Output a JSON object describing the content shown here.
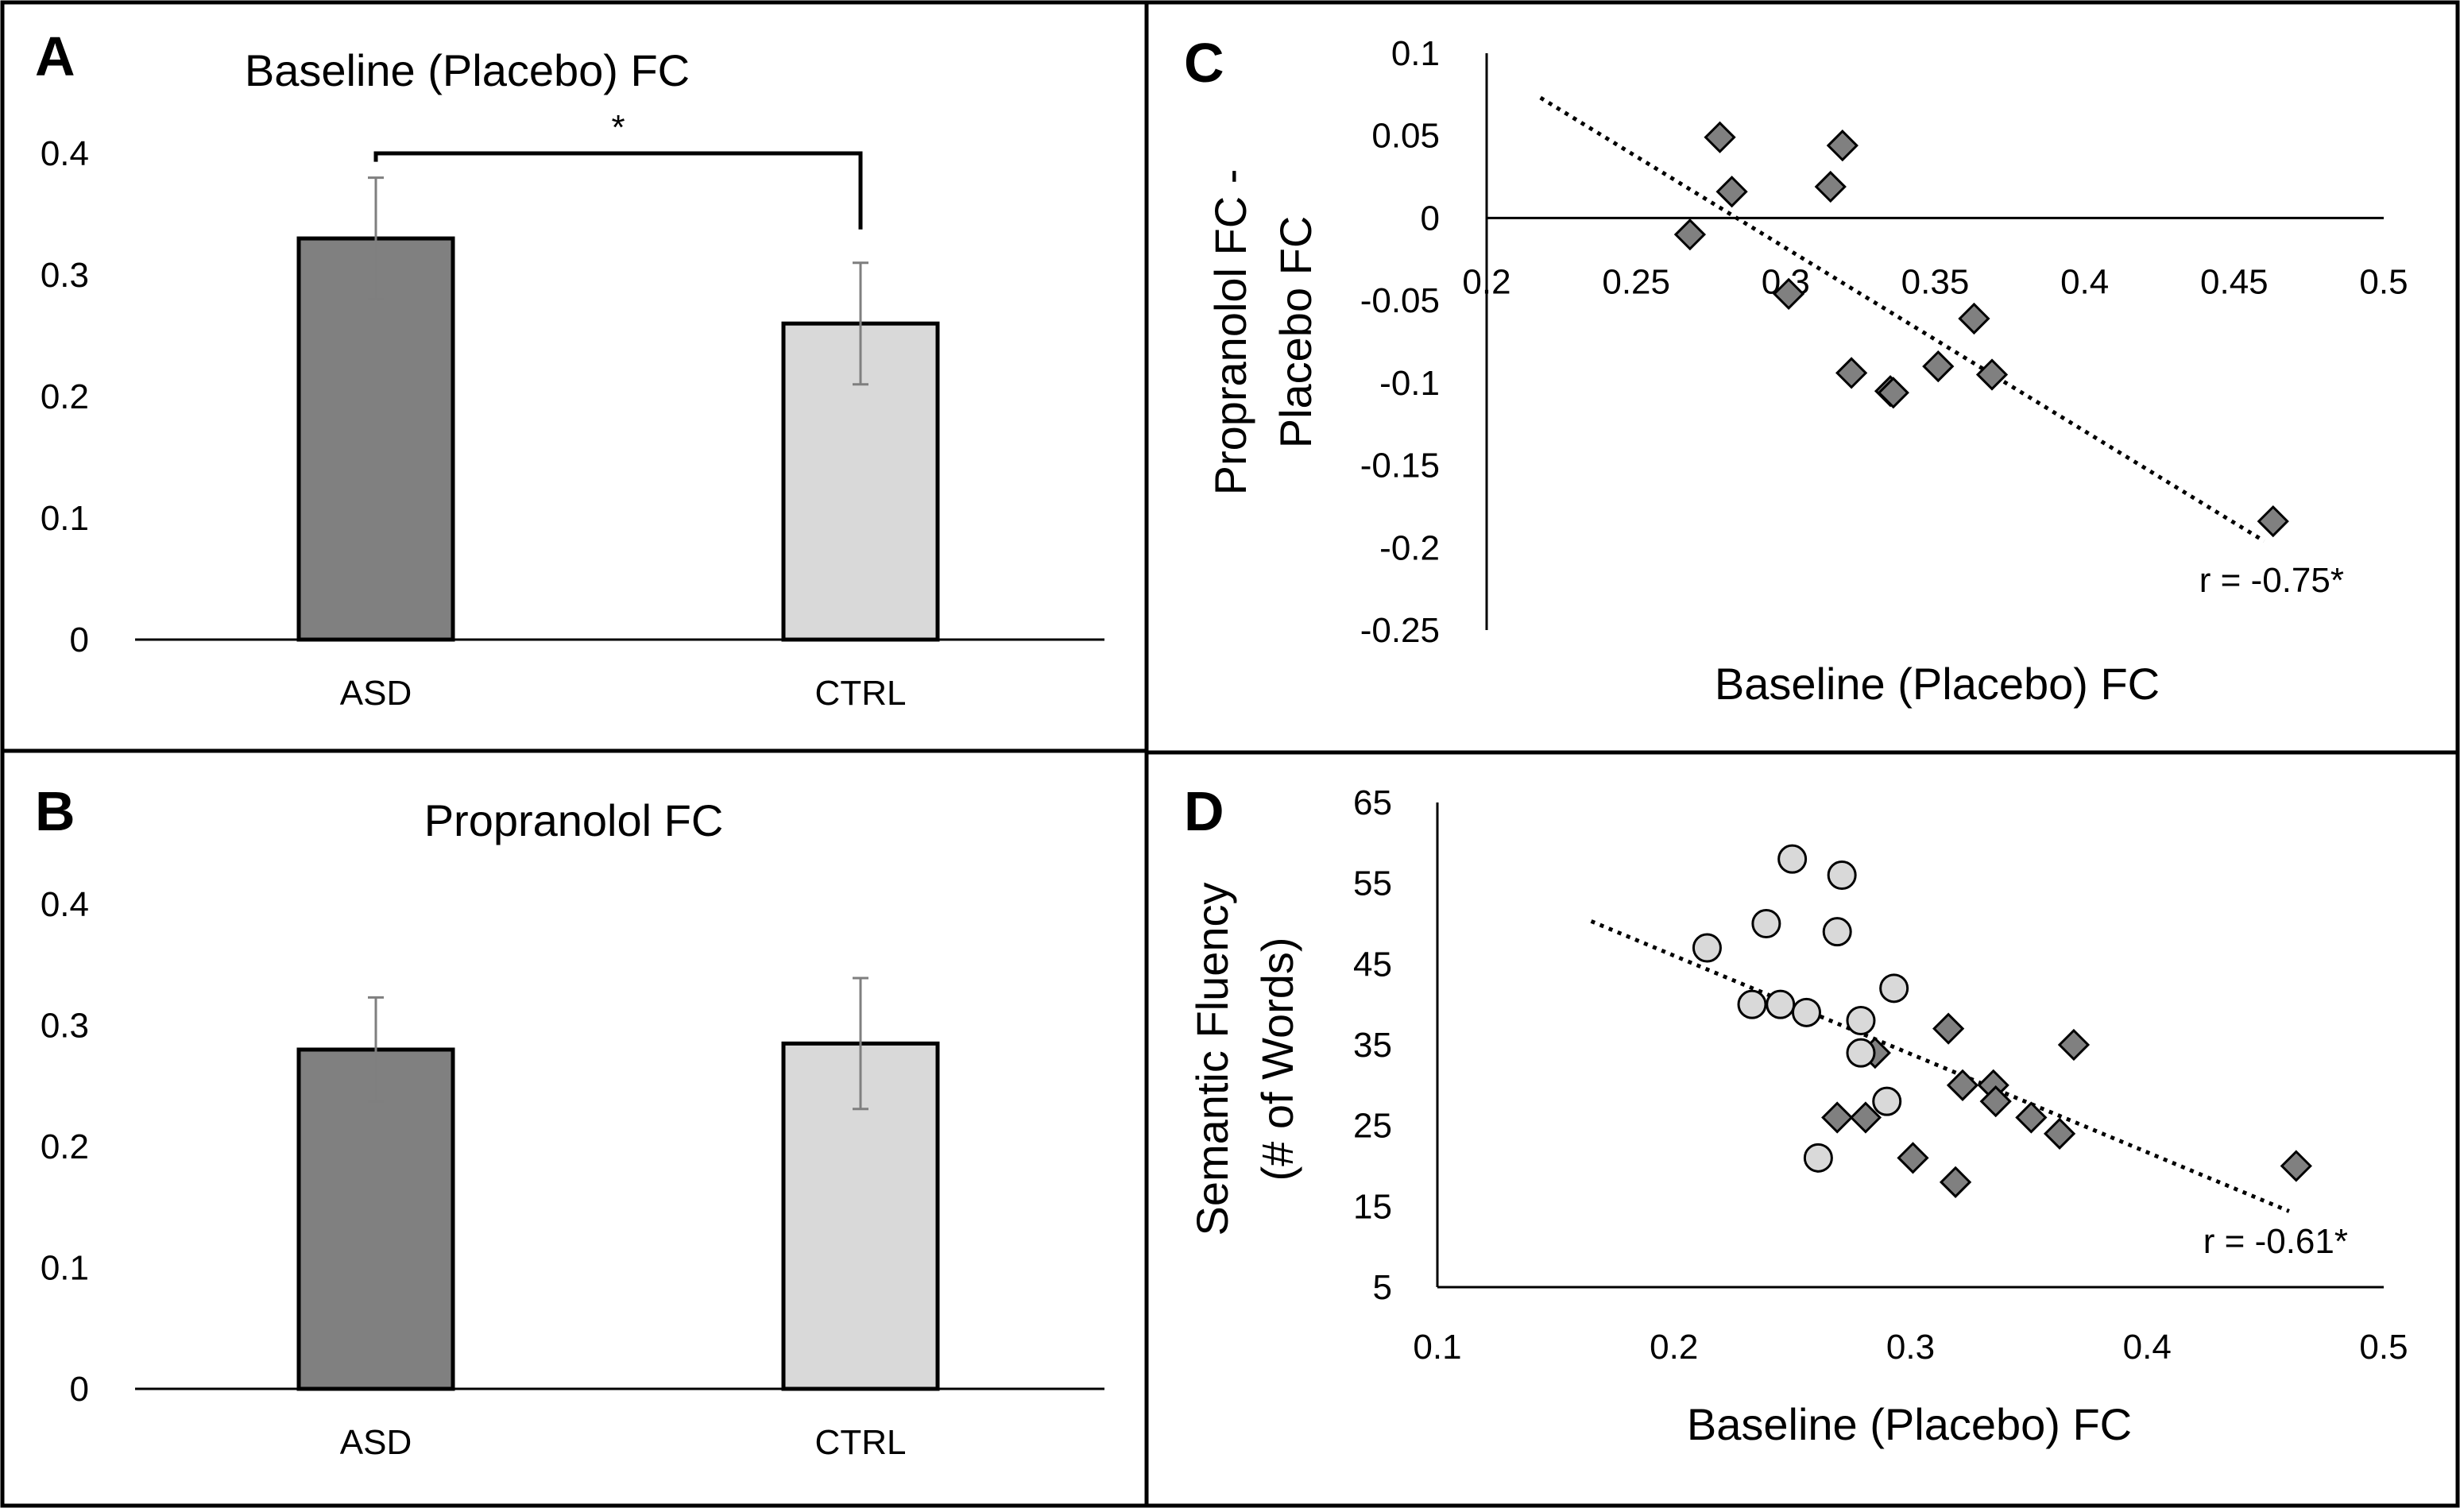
{
  "panels": [
    {
      "letter": "A",
      "chart_data": {
        "type": "bar",
        "title": "Baseline (Placebo) FC",
        "categories": [
          "ASD",
          "CTRL"
        ],
        "values": [
          0.33,
          0.26
        ],
        "errors": [
          0.05,
          0.05
        ],
        "bar_colors": [
          "#808080",
          "#d9d9d9"
        ],
        "ylim": [
          0,
          0.4
        ],
        "yticks": [
          "0",
          "0.1",
          "0.2",
          "0.3",
          "0.4"
        ],
        "ytick_values": [
          0,
          0.1,
          0.2,
          0.3,
          0.4
        ],
        "significance_label": "*",
        "grid": false
      }
    },
    {
      "letter": "B",
      "chart_data": {
        "type": "bar",
        "title": "Propranolol FC",
        "categories": [
          "ASD",
          "CTRL"
        ],
        "values": [
          0.28,
          0.285
        ],
        "errors": [
          0.043,
          0.054
        ],
        "bar_colors": [
          "#808080",
          "#d9d9d9"
        ],
        "ylim": [
          0,
          0.4
        ],
        "yticks": [
          "0",
          "0.1",
          "0.2",
          "0.3",
          "0.4"
        ],
        "ytick_values": [
          0,
          0.1,
          0.2,
          0.3,
          0.4
        ],
        "grid": false
      }
    },
    {
      "letter": "C",
      "chart_data": {
        "type": "scatter",
        "xlabel": "Baseline (Placebo) FC",
        "ylabel_lines": [
          "Propranolol FC -",
          "Placebo FC"
        ],
        "xlim": [
          0.2,
          0.5
        ],
        "ylim": [
          -0.25,
          0.1
        ],
        "xticks": [
          "0.2",
          "0.25",
          "0.3",
          "0.35",
          "0.4",
          "0.45",
          "0.5"
        ],
        "xtick_values": [
          0.2,
          0.25,
          0.3,
          0.35,
          0.4,
          0.45,
          0.5
        ],
        "yticks": [
          "0.1",
          "0.05",
          "0",
          "-0.05",
          "-0.1",
          "-0.15",
          "-0.2",
          "-0.25"
        ],
        "ytick_values": [
          0.1,
          0.05,
          0,
          -0.05,
          -0.1,
          -0.15,
          -0.2,
          -0.25
        ],
        "x_axis_crosses_at": 0,
        "marker": "diamond",
        "marker_color": "#808080",
        "points": [
          {
            "x": 0.268,
            "y": -0.01
          },
          {
            "x": 0.278,
            "y": 0.049
          },
          {
            "x": 0.282,
            "y": 0.016
          },
          {
            "x": 0.301,
            "y": -0.046
          },
          {
            "x": 0.315,
            "y": 0.019
          },
          {
            "x": 0.319,
            "y": 0.044
          },
          {
            "x": 0.322,
            "y": -0.094
          },
          {
            "x": 0.335,
            "y": -0.105
          },
          {
            "x": 0.336,
            "y": -0.106
          },
          {
            "x": 0.351,
            "y": -0.09
          },
          {
            "x": 0.363,
            "y": -0.061
          },
          {
            "x": 0.369,
            "y": -0.095
          },
          {
            "x": 0.463,
            "y": -0.184
          }
        ],
        "trendline": {
          "x": [
            0.218,
            0.46
          ],
          "y": [
            0.073,
            -0.196
          ]
        },
        "annotation": "r = -0.75*",
        "grid": false
      }
    },
    {
      "letter": "D",
      "chart_data": {
        "type": "scatter",
        "xlabel": "Baseline (Placebo) FC",
        "ylabel_lines": [
          "Semantic Fluency",
          "(# of Words)"
        ],
        "xlim": [
          0.1,
          0.5
        ],
        "ylim": [
          5,
          65
        ],
        "xticks": [
          "0.1",
          "0.2",
          "0.3",
          "0.4",
          "0.5"
        ],
        "xtick_values": [
          0.1,
          0.2,
          0.3,
          0.4,
          0.5
        ],
        "yticks": [
          "65",
          "55",
          "45",
          "35",
          "25",
          "15",
          "5"
        ],
        "ytick_values": [
          65,
          55,
          45,
          35,
          25,
          15,
          5
        ],
        "series": [
          {
            "marker": "diamond",
            "marker_color": "#808080",
            "points": [
              {
                "x": 0.269,
                "y": 26
              },
              {
                "x": 0.281,
                "y": 26
              },
              {
                "x": 0.285,
                "y": 34
              },
              {
                "x": 0.301,
                "y": 21
              },
              {
                "x": 0.316,
                "y": 37
              },
              {
                "x": 0.319,
                "y": 18
              },
              {
                "x": 0.322,
                "y": 30
              },
              {
                "x": 0.335,
                "y": 30
              },
              {
                "x": 0.336,
                "y": 28
              },
              {
                "x": 0.351,
                "y": 26
              },
              {
                "x": 0.363,
                "y": 24
              },
              {
                "x": 0.369,
                "y": 35
              },
              {
                "x": 0.463,
                "y": 20
              }
            ]
          },
          {
            "marker": "circle",
            "marker_color": "#d9d9d9",
            "points": [
              {
                "x": 0.214,
                "y": 47
              },
              {
                "x": 0.233,
                "y": 40
              },
              {
                "x": 0.239,
                "y": 50
              },
              {
                "x": 0.245,
                "y": 40
              },
              {
                "x": 0.25,
                "y": 58
              },
              {
                "x": 0.256,
                "y": 39
              },
              {
                "x": 0.261,
                "y": 21
              },
              {
                "x": 0.269,
                "y": 49
              },
              {
                "x": 0.271,
                "y": 56
              },
              {
                "x": 0.279,
                "y": 38
              },
              {
                "x": 0.279,
                "y": 34
              },
              {
                "x": 0.29,
                "y": 28
              },
              {
                "x": 0.293,
                "y": 42
              }
            ]
          }
        ],
        "trendline": {
          "x": [
            0.165,
            0.46
          ],
          "y": [
            50.3,
            14.4
          ]
        },
        "annotation": "r = -0.61*",
        "grid": false
      }
    }
  ]
}
